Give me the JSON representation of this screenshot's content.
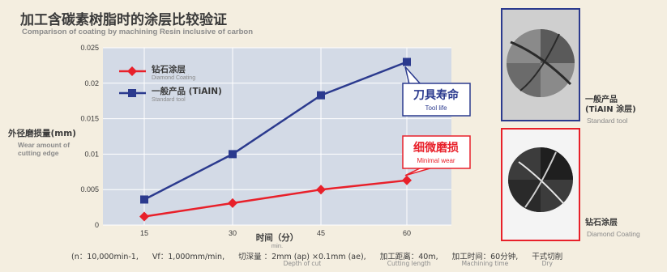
{
  "title": "加工含碳素树脂时的涂层比较验证",
  "subtitle": "Comparison of coating by machining Resin inclusive of carbon",
  "y_axis": {
    "label": "外径磨损量(mm)",
    "label_en": "Wear amount of cutting edge"
  },
  "x_axis": {
    "label": "时间（分）",
    "label_en": "min."
  },
  "legend": [
    {
      "name": "钻石涂层",
      "name_en": "Diamond Coating",
      "color": "#e8202a"
    },
    {
      "name": "一般产品 (TiAIN)",
      "name_en": "Standard tool",
      "color": "#2b3a8e"
    }
  ],
  "callouts": [
    {
      "text": "刀具寿命",
      "text_en": "Tool life",
      "color": "#2b3a8e"
    },
    {
      "text": "细微磨损",
      "text_en": "Minimal wear",
      "color": "#e8202a"
    }
  ],
  "photos": [
    {
      "label_cn_line1": "一般产品",
      "label_cn_line2": "(TiAIN 涂层)",
      "label_en": "Standard tool"
    },
    {
      "label_cn_line1": "钻石涂层",
      "label_cn_line2": "",
      "label_en": "Diamond Coating"
    }
  ],
  "conditions": [
    {
      "text": "(n：10,000min-1,",
      "sub": ""
    },
    {
      "text": "Vf：1,000mm/min,",
      "sub": ""
    },
    {
      "text": "切深量 ：2mm (ap) ×0.1mm (ae),",
      "sub": "Depth of cut"
    },
    {
      "text": "加工距离：40m,",
      "sub": "Cutting length"
    },
    {
      "text": "加工时间：60分钟,",
      "sub": "Machining time"
    },
    {
      "text": "干式切削",
      "sub": "Dry"
    }
  ],
  "colors": {
    "diamond": "#e8202a",
    "standard": "#2b3a8e",
    "plot_bg": "#d3dae6",
    "grid": "#ffffff"
  },
  "chart_data": {
    "type": "line",
    "x": [
      15,
      30,
      45,
      60
    ],
    "xticks": [
      "15",
      "30",
      "45",
      "60"
    ],
    "yticks": [
      "0",
      "0.005",
      "0.01",
      "0.015",
      "0.02",
      "0.025"
    ],
    "ylim": [
      0,
      0.025
    ],
    "series": [
      {
        "name": "钻石涂层",
        "values": [
          0.0012,
          0.0031,
          0.005,
          0.0063
        ]
      },
      {
        "name": "一般产品 (TiAIN)",
        "values": [
          0.0036,
          0.01,
          0.0183,
          0.023
        ]
      }
    ],
    "title": "加工含碳素树脂时的涂层比较验证",
    "xlabel": "时间（分）",
    "ylabel": "外径磨损量(mm)",
    "grid": true,
    "legend_position": "top-left"
  }
}
